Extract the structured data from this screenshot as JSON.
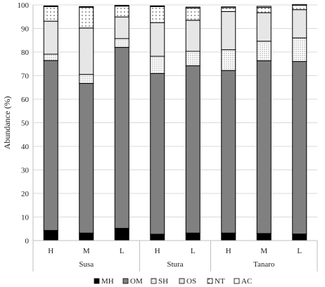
{
  "chart_data": {
    "type": "stacked-bar",
    "ylabel": "Abundance (%)",
    "ylim": [
      0,
      100
    ],
    "yticks": [
      "0",
      "10",
      "20",
      "30",
      "40",
      "50",
      "60",
      "70",
      "80",
      "90",
      "100"
    ],
    "groups": [
      {
        "name": "Susa",
        "categories": [
          "H",
          "M",
          "L"
        ]
      },
      {
        "name": "Stura",
        "categories": [
          "H",
          "L"
        ]
      },
      {
        "name": "Tanaro",
        "categories": [
          "H",
          "M",
          "L"
        ]
      }
    ],
    "series": [
      {
        "name": "MH",
        "fill": "#000000",
        "pattern": "solid",
        "values": [
          4.3,
          3.2,
          5.2,
          2.7,
          3.2,
          3.2,
          3.0,
          2.8
        ]
      },
      {
        "name": "OM",
        "fill": "#808080",
        "pattern": "solid",
        "values": [
          72.1,
          63.5,
          76.8,
          68.2,
          71.0,
          69.0,
          73.3,
          73.2
        ]
      },
      {
        "name": "SH",
        "fill": "#ffffff",
        "pattern": "dots-dense",
        "values": [
          2.7,
          3.8,
          3.7,
          7.3,
          6.1,
          8.8,
          8.3,
          10.0
        ]
      },
      {
        "name": "OS",
        "fill": "#e6e6e6",
        "pattern": "solid",
        "values": [
          14.0,
          19.7,
          9.2,
          14.3,
          13.2,
          16.2,
          12.1,
          12.0
        ]
      },
      {
        "name": "NT",
        "fill": "#ffffff",
        "pattern": "dots-sparse",
        "values": [
          6.2,
          8.8,
          4.6,
          6.8,
          5.2,
          1.6,
          2.2,
          1.8
        ]
      },
      {
        "name": "AC",
        "fill": "#ffffff",
        "pattern": "solid",
        "values": [
          0.3,
          0.3,
          0.3,
          0.3,
          0.4,
          0.4,
          0.5,
          0.4
        ]
      }
    ]
  }
}
